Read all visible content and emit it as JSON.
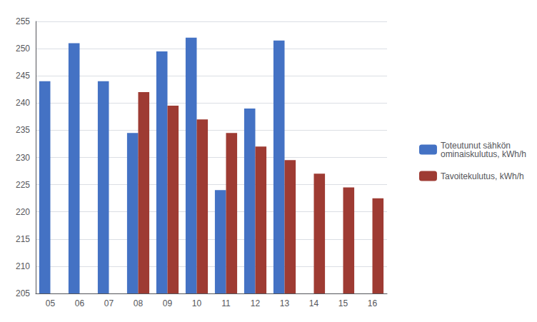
{
  "chart_data": {
    "type": "bar",
    "categories": [
      "05",
      "06",
      "07",
      "08",
      "09",
      "10",
      "11",
      "12",
      "13",
      "14",
      "15",
      "16"
    ],
    "series": [
      {
        "name": "Toteutunut sähkön\nominaiskulutus, kWh/h",
        "color": "#4472C4",
        "values": [
          244,
          251,
          244,
          234.5,
          249.5,
          252,
          224,
          239,
          251.5,
          null,
          null,
          null
        ]
      },
      {
        "name": "Tavoitekulutus, kWh/h",
        "color": "#9E3B33",
        "values": [
          null,
          null,
          null,
          242,
          239.5,
          237,
          234.5,
          232,
          229.5,
          227,
          224.5,
          222.5
        ]
      }
    ],
    "ylim": [
      205,
      255
    ],
    "yticks": [
      205,
      210,
      215,
      220,
      225,
      230,
      235,
      240,
      245,
      250,
      255
    ],
    "grid": true,
    "legend": "right"
  }
}
